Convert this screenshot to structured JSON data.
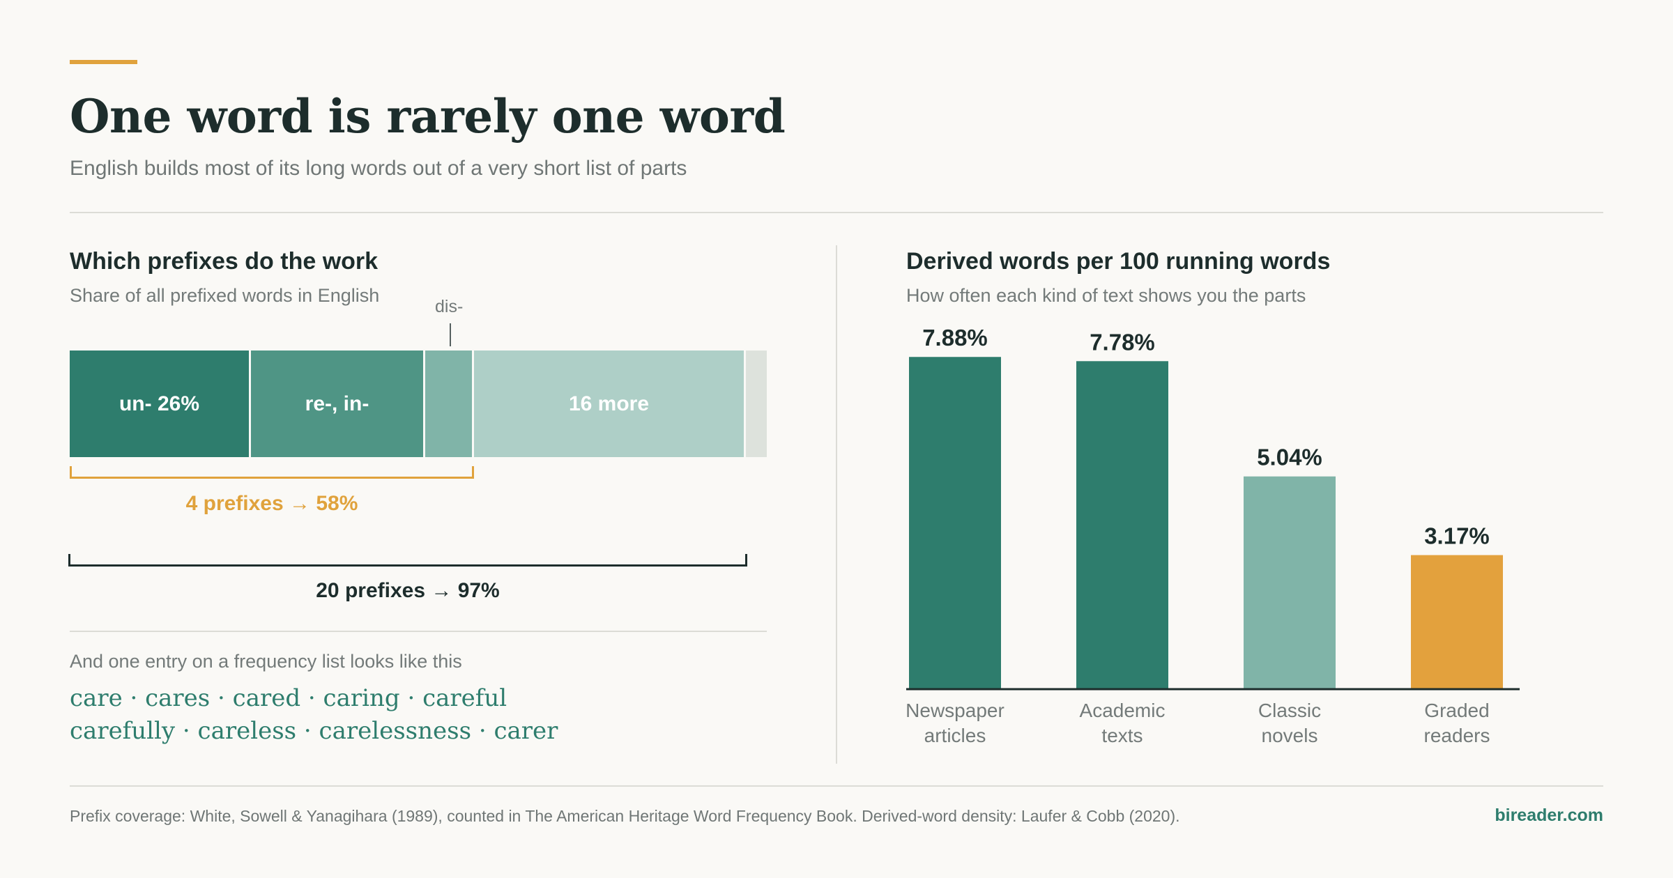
{
  "header": {
    "title": "One word is rarely one word",
    "subtitle": "English builds most of its long words out of a very short list of parts"
  },
  "left_panel": {
    "title": "Which prefixes do the work",
    "subtitle": "Share of all prefixed words in English",
    "callout_label": "dis-",
    "bracket_4_label": "4 prefixes → 58%",
    "bracket_20_label": "20 prefixes → 97%",
    "freq_intro": "And one entry on a frequency list looks like this",
    "freq_line_1": "care · cares · cared · caring · careful",
    "freq_line_2": "carefully · careless · carelessness · carer"
  },
  "right_panel": {
    "title": "Derived words per 100 running words",
    "subtitle": "How often each kind of text shows you the parts"
  },
  "chart_data": [
    {
      "type": "bar",
      "orientation": "stacked-horizontal",
      "title": "Which prefixes do the work",
      "subtitle": "Share of all prefixed words in English",
      "unit": "%",
      "segments": [
        {
          "label": "un- 26%",
          "value": 26,
          "color": "#2e7d6d"
        },
        {
          "label": "re-, in-",
          "value": 25,
          "color": "#4f9585"
        },
        {
          "label": "",
          "value": 7,
          "color": "#80b4a8"
        },
        {
          "label": "16 more",
          "value": 39,
          "color": "#aecfc7"
        },
        {
          "label": "",
          "value": 3,
          "color": "#dde2dc"
        }
      ],
      "annotations": [
        {
          "text": "dis-",
          "value": 7
        },
        {
          "text": "4 prefixes → 58%",
          "value": 58
        },
        {
          "text": "20 prefixes → 97%",
          "value": 97
        }
      ]
    },
    {
      "type": "bar",
      "title": "Derived words per 100 running words",
      "subtitle": "How often each kind of text shows you the parts",
      "categories": [
        "Newspaper articles",
        "Academic texts",
        "Classic novels",
        "Graded readers"
      ],
      "category_lines": [
        [
          "Newspaper",
          "articles"
        ],
        [
          "Academic",
          "texts"
        ],
        [
          "Classic",
          "novels"
        ],
        [
          "Graded",
          "readers"
        ]
      ],
      "values": [
        7.88,
        7.78,
        5.04,
        3.17
      ],
      "value_labels": [
        "7.88%",
        "7.78%",
        "5.04%",
        "3.17%"
      ],
      "colors": [
        "#2e7d6d",
        "#2e7d6d",
        "#80b4a8",
        "#e3a13d"
      ],
      "ylim": [
        0,
        8
      ],
      "grid": false,
      "legend": "none"
    }
  ],
  "footer": {
    "source": "Prefix coverage: White, Sowell & Yanagihara (1989), counted in The American Heritage Word Frequency Book. Derived-word density: Laufer & Cobb (2020).",
    "brand": "bireader.com"
  }
}
